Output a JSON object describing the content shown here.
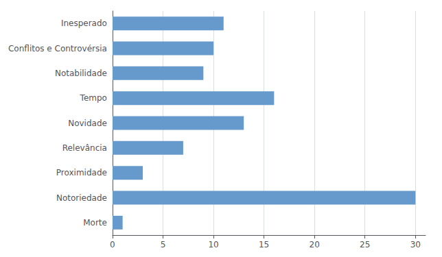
{
  "chart_data": {
    "type": "bar",
    "orientation": "horizontal",
    "categories": [
      "Morte",
      "Notoriedade",
      "Proximidade",
      "Relevância",
      "Novidade",
      "Tempo",
      "Notabilidade",
      "Conflitos e Controvérsia",
      "Inesperado"
    ],
    "values": [
      1,
      30,
      3,
      7,
      13,
      16,
      9,
      10,
      11
    ],
    "color": "#6699CC",
    "xlim": [
      0,
      31
    ],
    "xticks": [
      0,
      5,
      10,
      15,
      20,
      25,
      30
    ],
    "grid": true
  }
}
